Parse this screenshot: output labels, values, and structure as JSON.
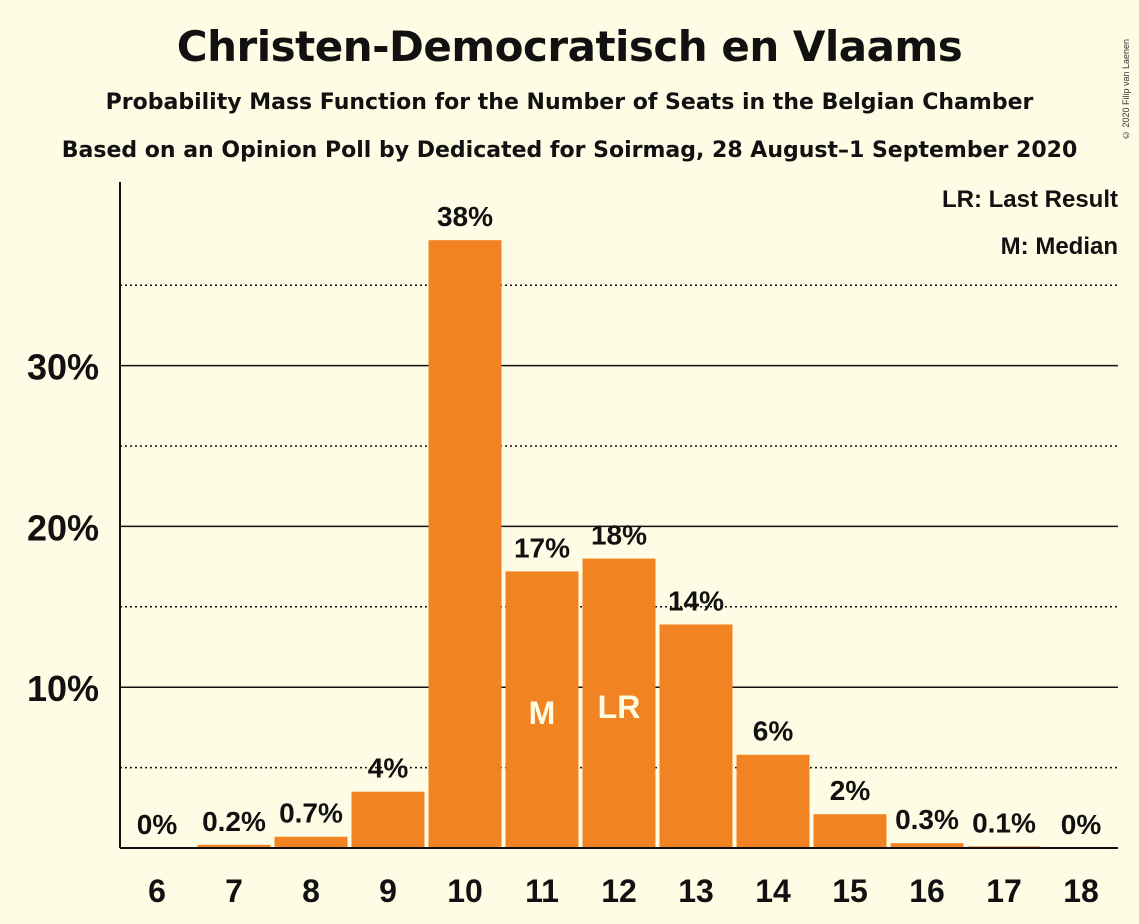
{
  "title": "Christen-Democratisch en Vlaams",
  "subtitle": "Probability Mass Function for the Number of Seats in the Belgian Chamber",
  "subtitle2": "Based on an Opinion Poll by Dedicated for Soirmag, 28 August–1 September 2020",
  "copyright": "© 2020 Filip van Laenen",
  "legend": {
    "last_result": "LR: Last Result",
    "median": "M: Median"
  },
  "colors": {
    "bar": "#f28322",
    "background": "#fefce4",
    "text": "#111111"
  },
  "chart_data": {
    "type": "bar",
    "title": "Christen-Democratisch en Vlaams",
    "categories": [
      "6",
      "7",
      "8",
      "9",
      "10",
      "11",
      "12",
      "13",
      "14",
      "15",
      "16",
      "17",
      "18"
    ],
    "values": [
      0,
      0.2,
      0.7,
      3.5,
      37.8,
      17.2,
      18.0,
      13.9,
      5.8,
      2.1,
      0.3,
      0.1,
      0
    ],
    "data_labels": [
      "0%",
      "0.2%",
      "0.7%",
      "4%",
      "38%",
      "17%",
      "18%",
      "14%",
      "6%",
      "2%",
      "0.3%",
      "0.1%",
      "0%"
    ],
    "bar_markers": {
      "11": "M",
      "12": "LR"
    },
    "yticks": [
      10,
      20,
      30
    ],
    "ytick_labels": [
      "10%",
      "20%",
      "30%"
    ],
    "minor_gridlines": [
      5,
      15,
      25,
      35
    ],
    "ylim": [
      0,
      40
    ],
    "grid": true,
    "legend_position": "top-right"
  }
}
